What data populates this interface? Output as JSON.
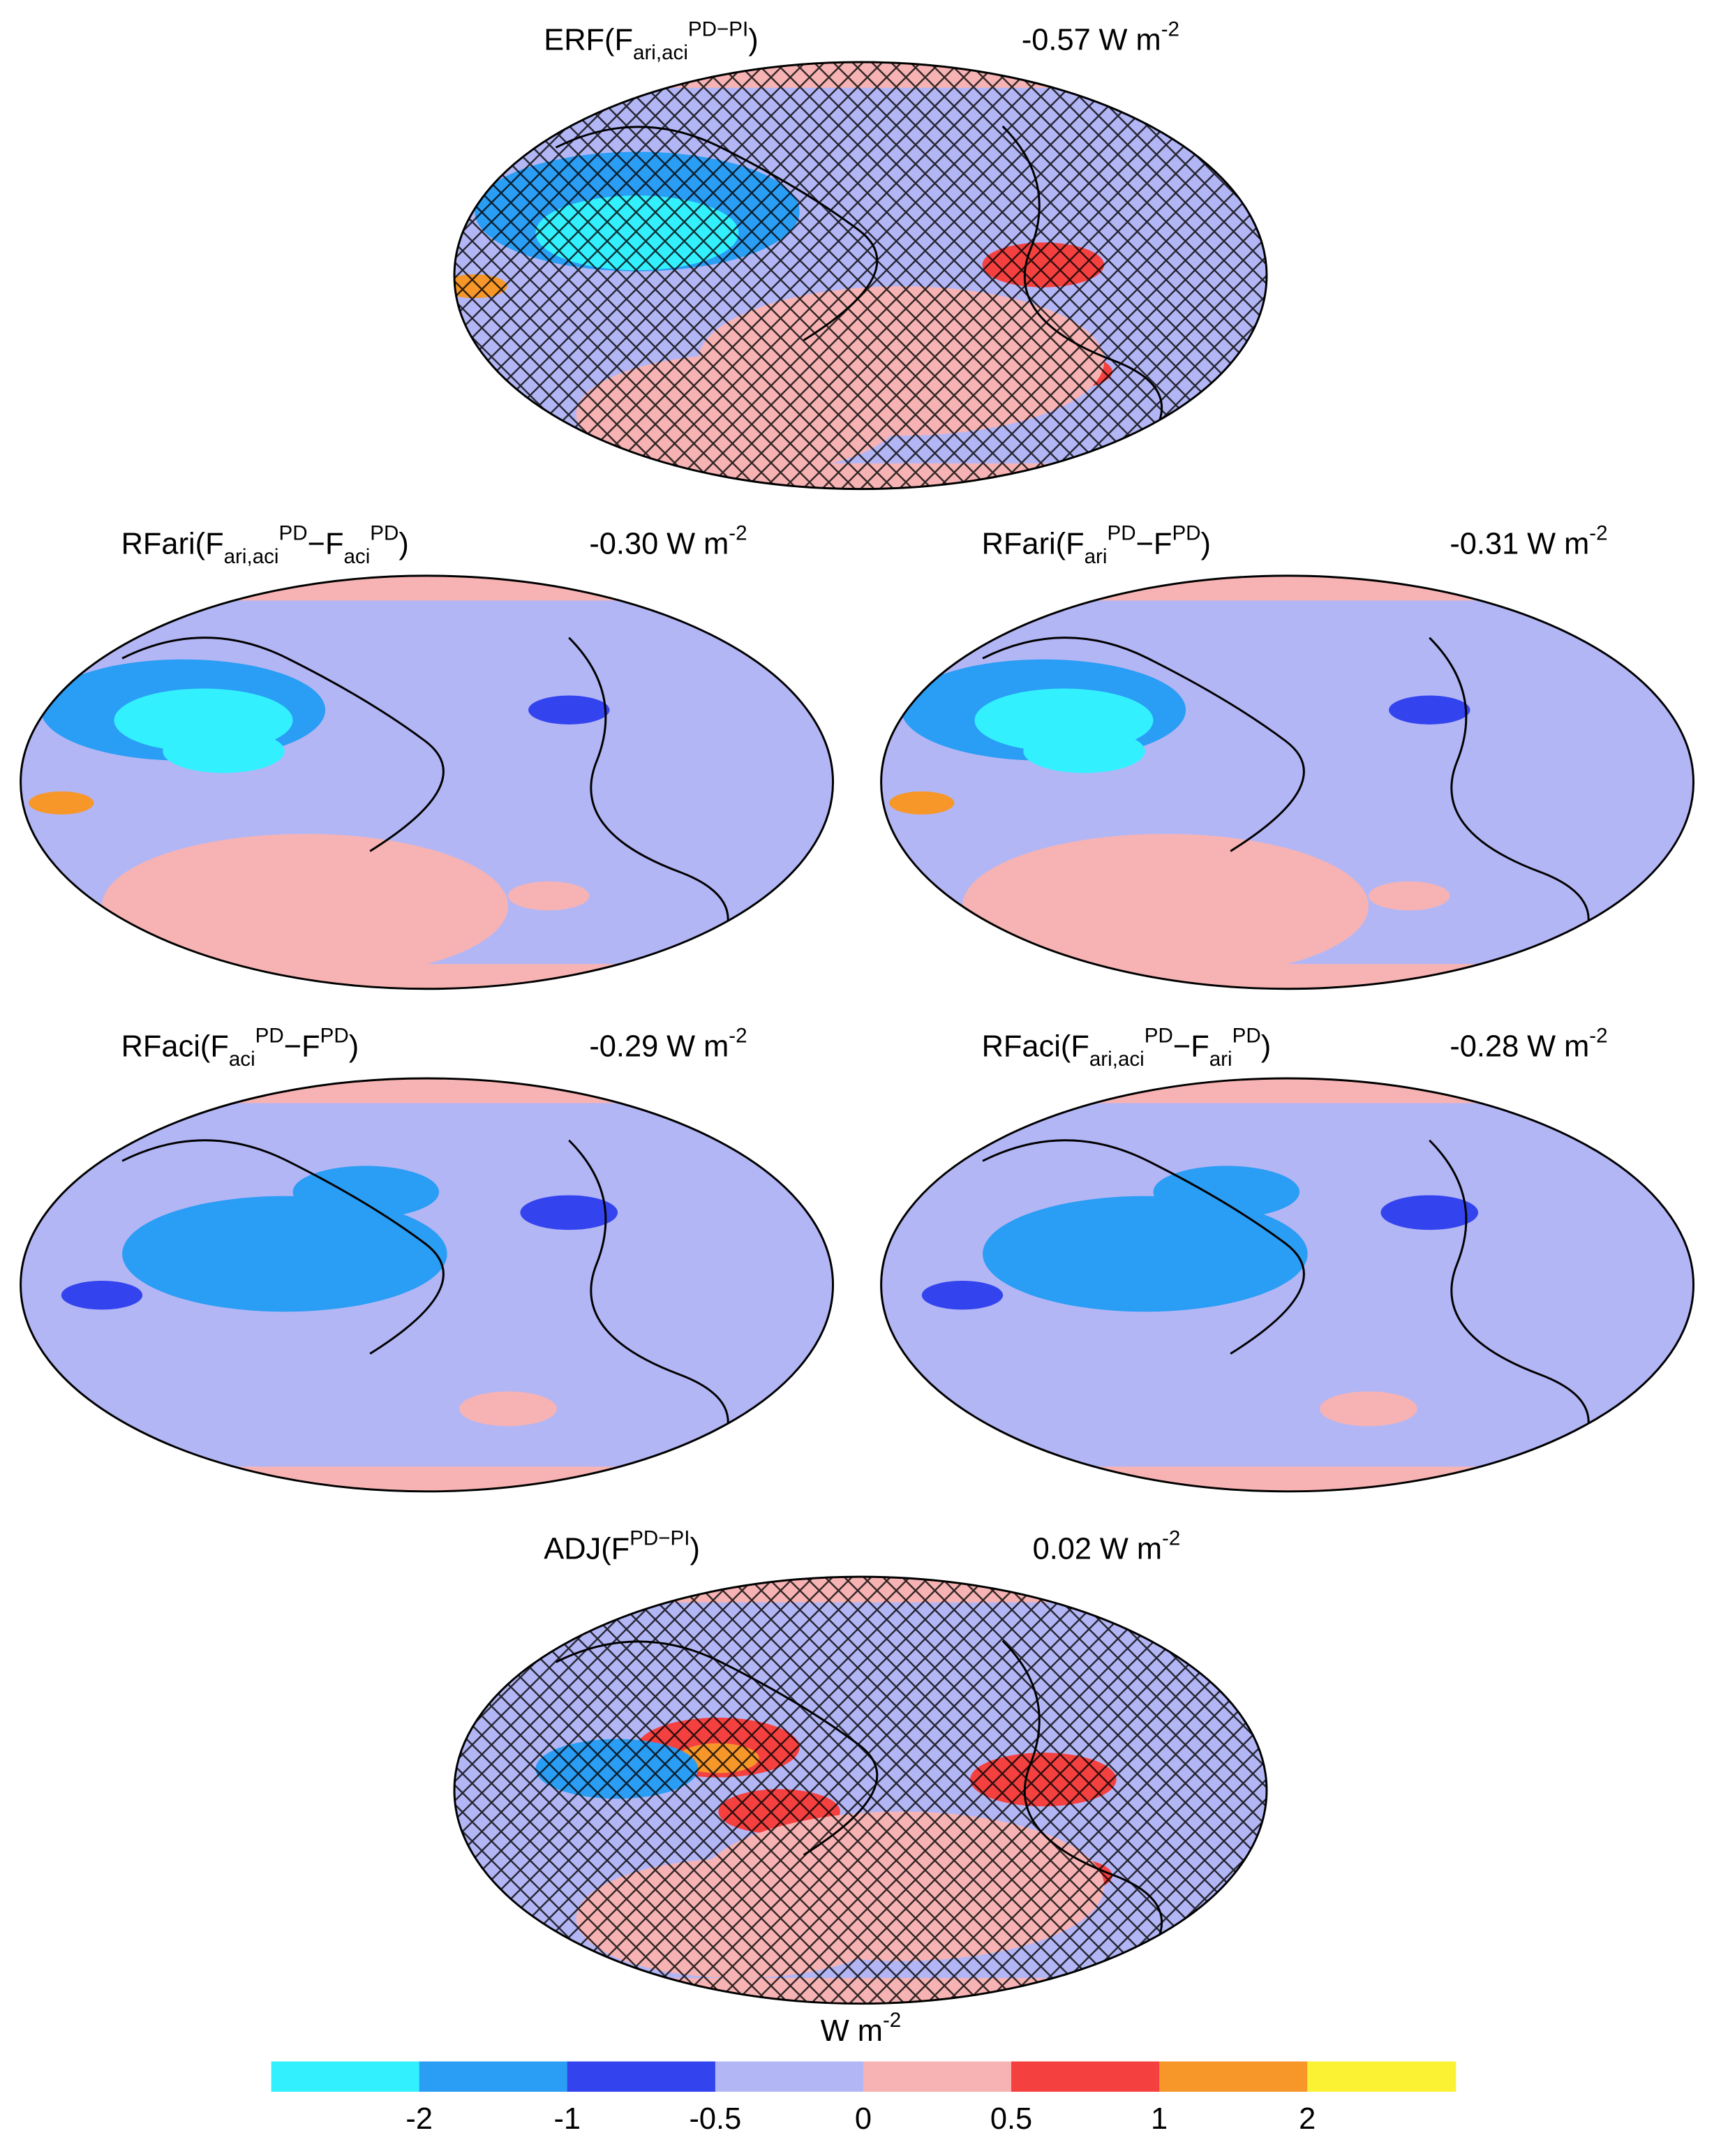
{
  "panels": [
    {
      "title": [
        {
          "text": "ERF(F"
        },
        {
          "text": "ari,aci",
          "pos": "sub"
        },
        {
          "text": "PD−PI",
          "pos": "sup"
        },
        {
          "text": ")"
        }
      ],
      "mean": "-0.57",
      "unit": "W m",
      "unit_exp": "-2",
      "hatched": true
    },
    {
      "title": [
        {
          "text": "RFari(F"
        },
        {
          "text": "ari,aci",
          "pos": "sub"
        },
        {
          "text": "PD",
          "pos": "sup"
        },
        {
          "text": "−F"
        },
        {
          "text": "aci",
          "pos": "sub"
        },
        {
          "text": "PD",
          "pos": "sup"
        },
        {
          "text": ")"
        }
      ],
      "mean": "-0.30",
      "unit": "W m",
      "unit_exp": "-2",
      "hatched": false
    },
    {
      "title": [
        {
          "text": "RFari(F"
        },
        {
          "text": "ari",
          "pos": "sub"
        },
        {
          "text": "PD",
          "pos": "sup"
        },
        {
          "text": "−F"
        },
        {
          "text": "PD",
          "pos": "sup"
        },
        {
          "text": ")"
        }
      ],
      "mean": "-0.31",
      "unit": "W m",
      "unit_exp": "-2",
      "hatched": false
    },
    {
      "title": [
        {
          "text": "RFaci(F"
        },
        {
          "text": "aci",
          "pos": "sub"
        },
        {
          "text": "PD",
          "pos": "sup"
        },
        {
          "text": "−F"
        },
        {
          "text": "PD",
          "pos": "sup"
        },
        {
          "text": ")"
        }
      ],
      "mean": "-0.29",
      "unit": "W m",
      "unit_exp": "-2",
      "hatched": false
    },
    {
      "title": [
        {
          "text": "RFaci(F"
        },
        {
          "text": "ari,aci",
          "pos": "sub"
        },
        {
          "text": "PD",
          "pos": "sup"
        },
        {
          "text": "−F"
        },
        {
          "text": "ari",
          "pos": "sub"
        },
        {
          "text": "PD",
          "pos": "sup"
        },
        {
          "text": ")"
        }
      ],
      "mean": "-0.28",
      "unit": "W m",
      "unit_exp": "-2",
      "hatched": false
    },
    {
      "title": [
        {
          "text": "ADJ(F"
        },
        {
          "text": "PD−PI",
          "pos": "sup"
        },
        {
          "text": ")"
        }
      ],
      "mean": "0.02",
      "unit": "W m",
      "unit_exp": "-2",
      "hatched": true
    }
  ],
  "colorbar": {
    "label": "W m",
    "label_exp": "-2",
    "ticks": [
      -2,
      -1,
      -0.5,
      0,
      0.5,
      1,
      2
    ],
    "colors": [
      "#33f0ff",
      "#2a9df4",
      "#3344ee",
      "#b3b6f5",
      "#f7b3b3",
      "#f54040",
      "#f7972a",
      "#fbf233"
    ]
  }
}
